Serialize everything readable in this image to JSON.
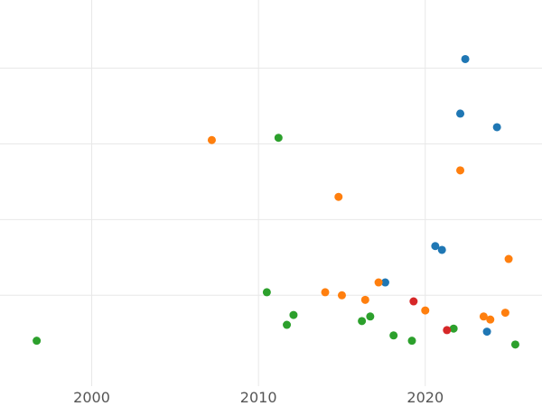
{
  "chart_data": {
    "type": "scatter",
    "title": "",
    "xlabel": "",
    "ylabel": "",
    "xlim": [
      1994.5,
      2027.0
    ],
    "ylim": [
      -1.2,
      3.9
    ],
    "x_ticks": [
      2000,
      2010,
      2020
    ],
    "x_tick_labels": [
      "2000",
      "2010",
      "2020"
    ],
    "y_gridlines": [
      0,
      1,
      2,
      3
    ],
    "grid": true,
    "legend": "none",
    "colors": {
      "blue": "#1f77b4",
      "orange": "#ff7f0e",
      "green": "#2ca02c",
      "red": "#d62728"
    },
    "series": [
      {
        "color": "blue",
        "x": [
          2022.4,
          2022.1,
          2024.3,
          2020.6,
          2021.0,
          2017.6,
          2023.7
        ],
        "y": [
          3.12,
          2.4,
          2.22,
          0.65,
          0.6,
          0.17,
          -0.48
        ]
      },
      {
        "color": "orange",
        "x": [
          2007.2,
          2022.1,
          2014.8,
          2025.0,
          2017.2,
          2014.0,
          2015.0,
          2016.4,
          2020.0,
          2023.5,
          2023.9,
          2024.8
        ],
        "y": [
          2.05,
          1.65,
          1.3,
          0.48,
          0.17,
          0.04,
          0.0,
          -0.06,
          -0.2,
          -0.28,
          -0.32,
          -0.23
        ]
      },
      {
        "color": "green",
        "x": [
          2011.2,
          2010.5,
          2012.1,
          2011.7,
          2016.7,
          2016.2,
          2018.1,
          2019.2,
          2021.7,
          2025.4,
          1996.7
        ],
        "y": [
          2.08,
          0.04,
          -0.26,
          -0.39,
          -0.28,
          -0.34,
          -0.53,
          -0.6,
          -0.44,
          -0.65,
          -0.6
        ]
      },
      {
        "color": "red",
        "x": [
          2019.3,
          2021.3
        ],
        "y": [
          -0.08,
          -0.46
        ]
      }
    ]
  }
}
